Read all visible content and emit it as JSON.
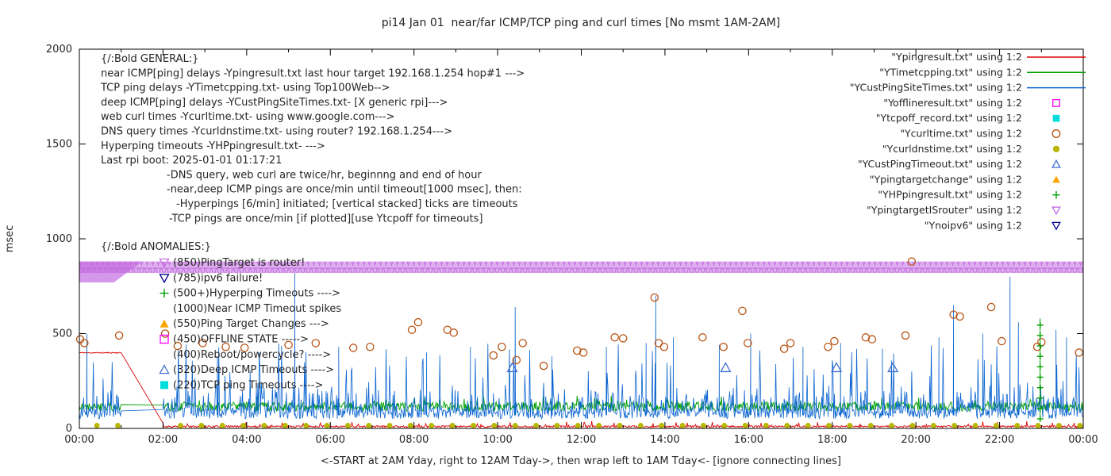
{
  "chart_data": {
    "type": "line",
    "title": "pi14 Jan 01  near/far ICMP/TCP ping and curl times [No msmt 1AM-2AM]",
    "ylabel": "msec",
    "xlabel": "<-START at 2AM Yday, right to 12AM Tday->, then wrap left to 1AM Tday<- [ignore connecting lines]",
    "ylim": [
      0,
      2000
    ],
    "xlim_hours": [
      0,
      24
    ],
    "grid": false,
    "legend_position": "top-right-outside",
    "yticks": [
      {
        "v": 0,
        "label": "0"
      },
      {
        "v": 500,
        "label": "500"
      },
      {
        "v": 1000,
        "label": "1000"
      },
      {
        "v": 1500,
        "label": "1500"
      },
      {
        "v": 2000,
        "label": "2000"
      }
    ],
    "xticks": [
      {
        "h": 0,
        "label": "00:00"
      },
      {
        "h": 2,
        "label": "02:00"
      },
      {
        "h": 4,
        "label": "04:00"
      },
      {
        "h": 6,
        "label": "06:00"
      },
      {
        "h": 8,
        "label": "08:00"
      },
      {
        "h": 10,
        "label": "10:00"
      },
      {
        "h": 12,
        "label": "12:00"
      },
      {
        "h": 14,
        "label": "14:00"
      },
      {
        "h": 16,
        "label": "16:00"
      },
      {
        "h": 18,
        "label": "18:00"
      },
      {
        "h": 20,
        "label": "20:00"
      },
      {
        "h": 22,
        "label": "22:00"
      },
      {
        "h": 24,
        "label": "00:00"
      }
    ],
    "no_measurement_gap_hours": [
      1,
      2
    ],
    "palette": {
      "red": "#dd0000",
      "green": "#00a000",
      "blue": "#0a64d0",
      "steelblue": "#3f6fd0",
      "magenta": "#ff00ff",
      "cyan": "#00dddd",
      "darkorange": "#b85415",
      "darkyellow": "#b8b800",
      "orange": "#ffa500",
      "violet": "#c36be0",
      "navy": "#000090",
      "axis": "#000000"
    },
    "band": {
      "name": "YpingtargetISrouter",
      "level_ms": 850,
      "half_ms": 30,
      "color": "violet",
      "wedge": {
        "from_h": 0,
        "to_h": 1.5,
        "drop_ms": 80
      }
    },
    "lines": [
      {
        "name": "Ypingresult",
        "color": "red",
        "seed": 11,
        "width": 0.9,
        "segments": [
          {
            "from": 0,
            "to": 1,
            "base": 396,
            "rand": 6
          },
          {
            "from": 2,
            "to": 24,
            "base": 5,
            "rand": 10,
            "p_mid": 0.05,
            "mid": 26
          }
        ],
        "spikes": []
      },
      {
        "name": "YTimetcpping",
        "color": "green",
        "seed": 22,
        "width": 0.9,
        "segments": [
          {
            "from": 0,
            "to": 1,
            "base": 90,
            "rand": 50,
            "p_mid": 0.06,
            "mid": 40
          },
          {
            "from": 2,
            "to": 24,
            "base": 90,
            "rand": 50,
            "p_mid": 0.06,
            "mid": 40
          }
        ],
        "spikes": []
      },
      {
        "name": "YCustPingSiteTimes",
        "color": "blue",
        "seed": 33,
        "width": 0.8,
        "segments": [
          {
            "from": 0,
            "to": 1,
            "base": 50,
            "rand": 60,
            "p_mid": 0.32,
            "mid": 130,
            "p_big": 0.06,
            "big_lo": 220,
            "big_hi": 450
          },
          {
            "from": 2,
            "to": 24,
            "base": 50,
            "rand": 60,
            "p_mid": 0.32,
            "mid": 130,
            "p_big": 0.06,
            "big_lo": 220,
            "big_hi": 450
          }
        ],
        "spikes": [
          [
            0.18,
            500
          ],
          [
            3.3,
            380
          ],
          [
            5.15,
            820
          ],
          [
            6.2,
            430
          ],
          [
            8.3,
            400
          ],
          [
            9.35,
            430
          ],
          [
            10.42,
            640
          ],
          [
            11.3,
            380
          ],
          [
            12.6,
            430
          ],
          [
            13.55,
            450
          ],
          [
            13.78,
            700
          ],
          [
            14.2,
            480
          ],
          [
            15.3,
            440
          ],
          [
            16.05,
            500
          ],
          [
            17.3,
            430
          ],
          [
            18.2,
            450
          ],
          [
            19.2,
            420
          ],
          [
            20.55,
            480
          ],
          [
            20.9,
            650
          ],
          [
            21.6,
            500
          ],
          [
            22.25,
            800
          ],
          [
            22.45,
            560
          ],
          [
            23.35,
            520
          ],
          [
            23.6,
            480
          ]
        ]
      }
    ],
    "scatter": [
      {
        "name": "Ycurltime",
        "marker": "circle-open",
        "color": "darkorange",
        "size": 4.6,
        "points": [
          [
            0.02,
            470
          ],
          [
            0.12,
            450
          ],
          [
            0.95,
            490
          ],
          [
            2.05,
            500
          ],
          [
            2.35,
            435
          ],
          [
            2.95,
            450
          ],
          [
            3.5,
            430
          ],
          [
            3.95,
            425
          ],
          [
            5.0,
            440
          ],
          [
            5.65,
            450
          ],
          [
            6.55,
            425
          ],
          [
            6.95,
            430
          ],
          [
            7.95,
            520
          ],
          [
            8.1,
            560
          ],
          [
            8.8,
            520
          ],
          [
            8.95,
            505
          ],
          [
            9.9,
            385
          ],
          [
            10.1,
            430
          ],
          [
            10.45,
            360
          ],
          [
            10.6,
            450
          ],
          [
            11.1,
            330
          ],
          [
            11.9,
            410
          ],
          [
            12.05,
            400
          ],
          [
            12.8,
            480
          ],
          [
            13.0,
            475
          ],
          [
            13.75,
            690
          ],
          [
            13.85,
            450
          ],
          [
            13.98,
            430
          ],
          [
            14.9,
            480
          ],
          [
            15.4,
            430
          ],
          [
            15.85,
            620
          ],
          [
            15.98,
            450
          ],
          [
            16.85,
            420
          ],
          [
            17.0,
            450
          ],
          [
            17.9,
            430
          ],
          [
            18.05,
            460
          ],
          [
            18.8,
            480
          ],
          [
            18.95,
            470
          ],
          [
            19.75,
            490
          ],
          [
            19.9,
            880
          ],
          [
            20.9,
            600
          ],
          [
            21.05,
            590
          ],
          [
            21.8,
            640
          ],
          [
            22.05,
            460
          ],
          [
            22.9,
            430
          ],
          [
            23.0,
            455
          ],
          [
            23.9,
            400
          ]
        ]
      },
      {
        "name": "Ycurldnstime",
        "marker": "circle-filled",
        "color": "darkyellow",
        "size": 4.0,
        "value_ms": 15,
        "hours": [
          0.42,
          0.92,
          2.42,
          2.92,
          3.42,
          3.92,
          4.42,
          4.92,
          5.42,
          5.92,
          6.42,
          6.92,
          7.42,
          7.92,
          8.42,
          8.92,
          9.42,
          9.92,
          10.42,
          10.92,
          11.42,
          11.92,
          12.42,
          12.92,
          13.42,
          13.92,
          14.42,
          14.92,
          15.42,
          15.92,
          16.42,
          16.92,
          17.42,
          17.92,
          18.42,
          18.92,
          19.42,
          19.92,
          20.42,
          20.92,
          21.42,
          21.92,
          22.42,
          22.92,
          23.42,
          23.92
        ]
      },
      {
        "name": "YCustPingTimeout",
        "marker": "triangle-up-open",
        "color": "steelblue",
        "size": 6.0,
        "points": [
          [
            10.35,
            320
          ],
          [
            15.45,
            320
          ],
          [
            18.1,
            320
          ],
          [
            19.45,
            320
          ]
        ]
      },
      {
        "name": "YHPpingresult",
        "marker": "plus",
        "color": "green",
        "size": 4.0,
        "stacks": [
          {
            "h": 22.97,
            "from": 50,
            "to": 580,
            "step": 55
          }
        ]
      }
    ],
    "legend": [
      {
        "label": "\"Ypingresult.txt\" using 1:2",
        "type": "line",
        "color": "red"
      },
      {
        "label": "\"YTimetcpping.txt\" using 1:2",
        "type": "line",
        "color": "green"
      },
      {
        "label": "\"YCustPingSiteTimes.txt\" using 1:2",
        "type": "line",
        "color": "blue"
      },
      {
        "label": "\"Yofflineresult.txt\" using 1:2",
        "type": "square-open",
        "color": "magenta"
      },
      {
        "label": "\"Ytcpoff_record.txt\" using 1:2",
        "type": "square-filled",
        "color": "cyan"
      },
      {
        "label": "\"Ycurltime.txt\" using 1:2",
        "type": "circle-open",
        "color": "darkorange"
      },
      {
        "label": "\"Ycurldnstime.txt\" using 1:2",
        "type": "circle-filled",
        "color": "darkyellow"
      },
      {
        "label": "\"YCustPingTimeout.txt\" using 1:2",
        "type": "triangle-up-open",
        "color": "steelblue"
      },
      {
        "label": "\"Ypingtargetchange\" using 1:2",
        "type": "triangle-up-filled",
        "color": "orange"
      },
      {
        "label": "\"YHPpingresult.txt\" using 1:2",
        "type": "plus",
        "color": "green"
      },
      {
        "label": "\"YpingtargetISrouter\" using 1:2",
        "type": "triangle-down-open",
        "color": "violet"
      },
      {
        "label": "\"Ynoipv6\" using 1:2",
        "type": "triangle-down-open",
        "color": "navy"
      }
    ],
    "annotations": {
      "general": {
        "x": 127,
        "y": 78,
        "line_h": 18.3,
        "lines": [
          {
            "text": "{/:Bold GENERAL:}",
            "indent": 0
          },
          {
            "text": "near ICMP[ping] delays -Ypingresult.txt last hour target 192.168.1.254 hop#1 --->",
            "indent": 0
          },
          {
            "text": "TCP ping delays -YTimetcpping.txt- using Top100Web-->",
            "indent": 0
          },
          {
            "text": "deep ICMP[ping] delays -YCustPingSiteTimes.txt- [X generic rpi]--->",
            "indent": 0
          },
          {
            "text": "web curl times -Ycurltime.txt- using www.google.com--->",
            "indent": 0
          },
          {
            "text": "DNS query times -Ycurldnstime.txt- using router? 192.168.1.254--->",
            "indent": 0
          },
          {
            "text": "Hyperping timeouts -YHPpingresult.txt- --->",
            "indent": 0
          },
          {
            "text": "Last rpi boot: 2025-01-01 01:17:21",
            "indent": 0
          },
          {
            "text": "-DNS query, web curl are twice/hr, beginnng and end of hour",
            "indent": 83
          },
          {
            "text": "-near,deep ICMP pings are once/min until timeout[1000 msec], then:",
            "indent": 83
          },
          {
            "text": "-Hyperpings [6/min] initiated; [vertical stacked] ticks are timeouts",
            "indent": 95
          },
          {
            "text": "-TCP pings are once/min [if plotted][use Ytcpoff for timeouts]",
            "indent": 86
          }
        ]
      },
      "anomalies": {
        "header": "{/:Bold ANOMALIES:}",
        "x_marker": 207,
        "x_text": 218,
        "y": 315,
        "line_h": 19.3,
        "items": [
          {
            "marker": "triangle-down-open",
            "color": "violet",
            "label": "(850)PingTarget is router!"
          },
          {
            "marker": "triangle-down-open",
            "color": "navy",
            "label": "(785)ipv6 failure!"
          },
          {
            "marker": "plus",
            "color": "green",
            "label": "(500+)Hyperping Timeouts ---->"
          },
          {
            "marker": "none",
            "color": "",
            "label": "(1000)Near ICMP Timeout spikes"
          },
          {
            "marker": "triangle-up-filled",
            "color": "orange",
            "label": "(550)Ping Target Changes --->"
          },
          {
            "marker": "square-open",
            "color": "magenta",
            "label": "(450)OFFLINE STATE ----->"
          },
          {
            "marker": "none",
            "color": "",
            "label": "(400)Reboot/powercycle? ---->"
          },
          {
            "marker": "triangle-up-open",
            "color": "steelblue",
            "label": "(320)Deep ICMP Timeouts ---->"
          },
          {
            "marker": "square-filled",
            "color": "cyan",
            "label": "(220)TCP ping Timeouts ---->"
          }
        ]
      }
    }
  }
}
